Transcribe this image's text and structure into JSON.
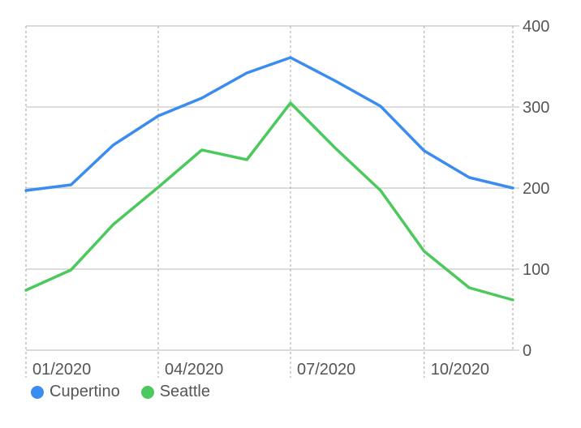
{
  "chart_data": {
    "type": "line",
    "x": [
      "2020-01-01",
      "2020-02-01",
      "2020-03-01",
      "2020-04-01",
      "2020-05-01",
      "2020-06-01",
      "2020-07-01",
      "2020-08-01",
      "2020-09-01",
      "2020-10-01",
      "2020-11-01",
      "2020-12-01"
    ],
    "x_tick_labels": [
      {
        "x": "2020-01-01",
        "label": "01/2020"
      },
      {
        "x": "2020-04-01",
        "label": "04/2020"
      },
      {
        "x": "2020-07-01",
        "label": "07/2020"
      },
      {
        "x": "2020-10-01",
        "label": "10/2020"
      }
    ],
    "series": [
      {
        "name": "Cupertino",
        "color": "#3b8cf0",
        "values": [
          197,
          204,
          253,
          289,
          311,
          342,
          361,
          332,
          301,
          246,
          213,
          200
        ]
      },
      {
        "name": "Seattle",
        "color": "#4cc95d",
        "values": [
          74,
          99,
          155,
          201,
          247,
          235,
          305,
          249,
          197,
          122,
          77,
          62
        ]
      }
    ],
    "xlim": [
      "2020-01-01",
      "2020-12-01"
    ],
    "ylim": [
      0,
      400
    ],
    "y_ticks": [
      0,
      100,
      200,
      300,
      400
    ],
    "y_axis_position": "right",
    "grid": true,
    "legend": "bottom-left"
  }
}
